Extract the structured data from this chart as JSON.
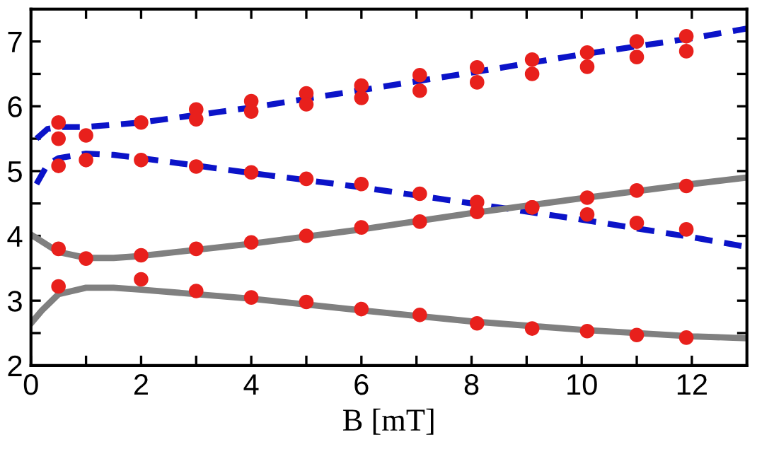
{
  "chart_data": {
    "type": "line",
    "xlabel": "B [mT]",
    "xlim": [
      0,
      13
    ],
    "ylim": [
      2,
      7.5
    ],
    "xticks": [
      0,
      {
        "value": 1,
        "label": null
      },
      2,
      {
        "value": 3,
        "label": null
      },
      4,
      {
        "value": 5,
        "label": null
      },
      6,
      {
        "value": 7,
        "label": null
      },
      8,
      {
        "value": 9,
        "label": null
      },
      10,
      {
        "value": 11,
        "label": null
      },
      12
    ],
    "yticks": [
      2,
      {
        "value": 2.5,
        "label": null
      },
      3,
      {
        "value": 3.5,
        "label": null
      },
      4,
      {
        "value": 4.5,
        "label": null
      },
      5,
      {
        "value": 5.5,
        "label": null
      },
      6,
      {
        "value": 6.5,
        "label": null
      },
      7
    ],
    "grid": false,
    "legend": false,
    "series": [
      {
        "line_style": "dashed",
        "marker": "none",
        "color": "#0b13c8",
        "x": [
          0.1,
          0.3,
          0.5,
          1,
          2,
          4,
          6,
          8,
          10,
          12,
          13
        ],
        "values": [
          5.5,
          5.65,
          5.68,
          5.68,
          5.75,
          5.98,
          6.25,
          6.52,
          6.8,
          7.05,
          7.2
        ]
      },
      {
        "line_style": "dashed",
        "marker": "none",
        "color": "#0b13c8",
        "x": [
          0.1,
          0.3,
          0.5,
          1,
          1.5,
          2,
          4,
          6,
          8,
          10,
          12,
          13
        ],
        "values": [
          4.8,
          5.1,
          5.2,
          5.27,
          5.25,
          5.2,
          4.97,
          4.75,
          4.5,
          4.25,
          3.98,
          3.83
        ]
      },
      {
        "line_style": "solid",
        "marker": "none",
        "color": "#808080",
        "x": [
          0,
          0.5,
          1,
          1.5,
          2,
          4,
          6,
          8,
          10,
          12,
          13
        ],
        "values": [
          4.02,
          3.75,
          3.66,
          3.66,
          3.69,
          3.88,
          4.1,
          4.35,
          4.58,
          4.8,
          4.9
        ]
      },
      {
        "line_style": "solid",
        "marker": "none",
        "color": "#808080",
        "x": [
          0,
          0.2,
          0.5,
          1,
          1.5,
          2,
          4,
          6,
          8,
          10,
          12,
          13
        ],
        "values": [
          2.65,
          2.85,
          3.1,
          3.2,
          3.2,
          3.17,
          3.03,
          2.85,
          2.68,
          2.55,
          2.45,
          2.42
        ]
      },
      {
        "type": "scatter",
        "marker": "circle",
        "color": "#e8201c",
        "x": [
          0.5,
          0.5,
          1,
          2,
          3,
          3,
          4,
          4,
          5,
          5,
          6,
          6,
          7.06,
          7.06,
          8.1,
          8.1,
          9.1,
          9.1,
          10.1,
          10.1,
          11,
          11,
          11.9,
          11.9,
          0.5,
          1,
          2,
          3,
          4,
          5,
          6,
          7.06,
          8.1,
          9.1,
          10.1,
          11,
          11.9,
          0.5,
          1,
          2,
          3,
          4,
          5,
          6,
          7.06,
          8.1,
          9.1,
          10.1,
          11,
          11.9,
          0.5,
          2,
          3,
          4,
          5,
          6,
          7.06,
          8.1,
          9.1,
          10.1,
          11,
          11.9
        ],
        "values": [
          5.75,
          5.5,
          5.55,
          5.75,
          5.95,
          5.8,
          6.08,
          5.92,
          6.2,
          6.03,
          6.32,
          6.13,
          6.48,
          6.24,
          6.6,
          6.37,
          6.72,
          6.5,
          6.83,
          6.61,
          7.0,
          6.76,
          7.08,
          6.85,
          5.08,
          5.17,
          5.17,
          5.07,
          4.98,
          4.88,
          4.8,
          4.65,
          4.52,
          4.44,
          4.33,
          4.2,
          4.1,
          3.8,
          3.65,
          3.7,
          3.8,
          3.9,
          4.0,
          4.13,
          4.22,
          4.37,
          4.44,
          4.59,
          4.7,
          4.77,
          3.22,
          3.33,
          3.15,
          3.05,
          2.98,
          2.87,
          2.78,
          2.65,
          2.57,
          2.53,
          2.47,
          2.43
        ]
      }
    ]
  }
}
